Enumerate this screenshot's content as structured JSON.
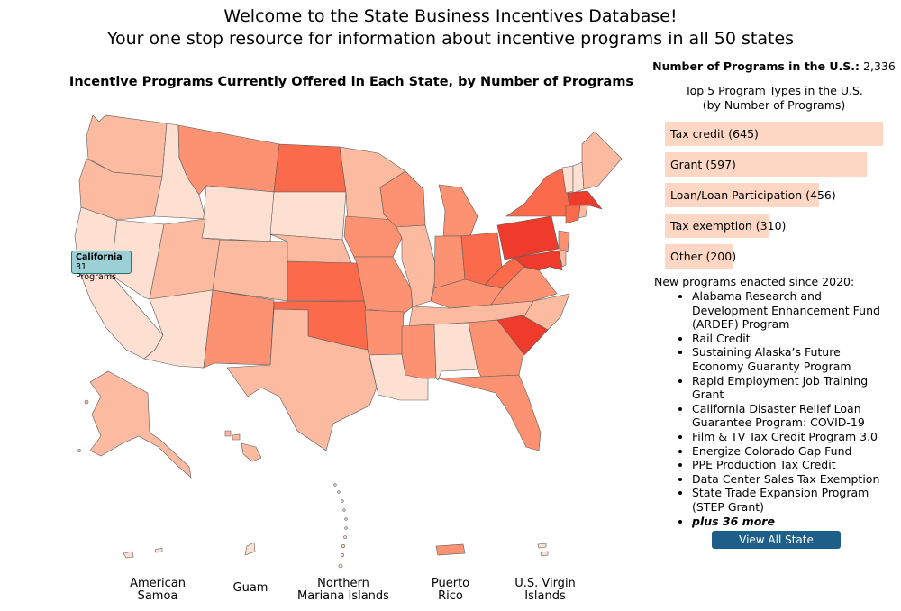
{
  "header": {
    "line1": "Welcome to the State Business Incentives Database!",
    "line2": "Your one stop resource for information about incentive programs in all 50 states"
  },
  "map": {
    "title": "Incentive Programs Currently Offered in Each State, by Number of Programs",
    "tooltip": {
      "state": "California",
      "count": "31 Programs"
    },
    "territories": {
      "american_samoa": "American Samoa",
      "guam": "Guam",
      "northern_mariana": "Northern Mariana Islands",
      "puerto_rico": "Puerto Rico",
      "virgin_islands": "U.S. Virgin Islands"
    },
    "colors": {
      "lightest": "#fee0d2",
      "light": "#fcbba1",
      "mid": "#fc9272",
      "strong": "#fb6a4a",
      "darkest": "#ef3b2c"
    }
  },
  "sidebar": {
    "total_label": "Number of Programs in the U.S.:",
    "total_value": "2,336",
    "top5_title_line1": "Top 5 Program Types in the U.S.",
    "top5_title_line2": "(by Number of Programs)",
    "program_types": [
      {
        "label": "Tax credit (645)",
        "count": 645
      },
      {
        "label": "Grant (597)",
        "count": 597
      },
      {
        "label": "Loan/Loan Participation (456)",
        "count": 456
      },
      {
        "label": "Tax exemption (310)",
        "count": 310
      },
      {
        "label": "Other (200)",
        "count": 200
      }
    ],
    "bar_color": "#fdd6c4",
    "new_programs_title": "New programs enacted since 2020:",
    "new_programs": [
      "Alabama Research and Development Enhancement Fund (ARDEF) Program",
      "Rail Credit",
      "Sustaining Alaska’s Future Economy Guaranty Program",
      "Rapid Employment Job Training Grant",
      "California Disaster Relief Loan Guarantee Program: COVID-19",
      "Film & TV Tax Credit Program 3.0",
      "Energize Colorado Gap Fund",
      "PPE Production Tax Credit",
      "Data Center Sales Tax Exemption",
      "State Trade Expansion Program (STEP Grant)"
    ],
    "more_label": "plus 36 more",
    "view_all_button": "View All State Programs",
    "button_color": "#1e5f8a"
  }
}
